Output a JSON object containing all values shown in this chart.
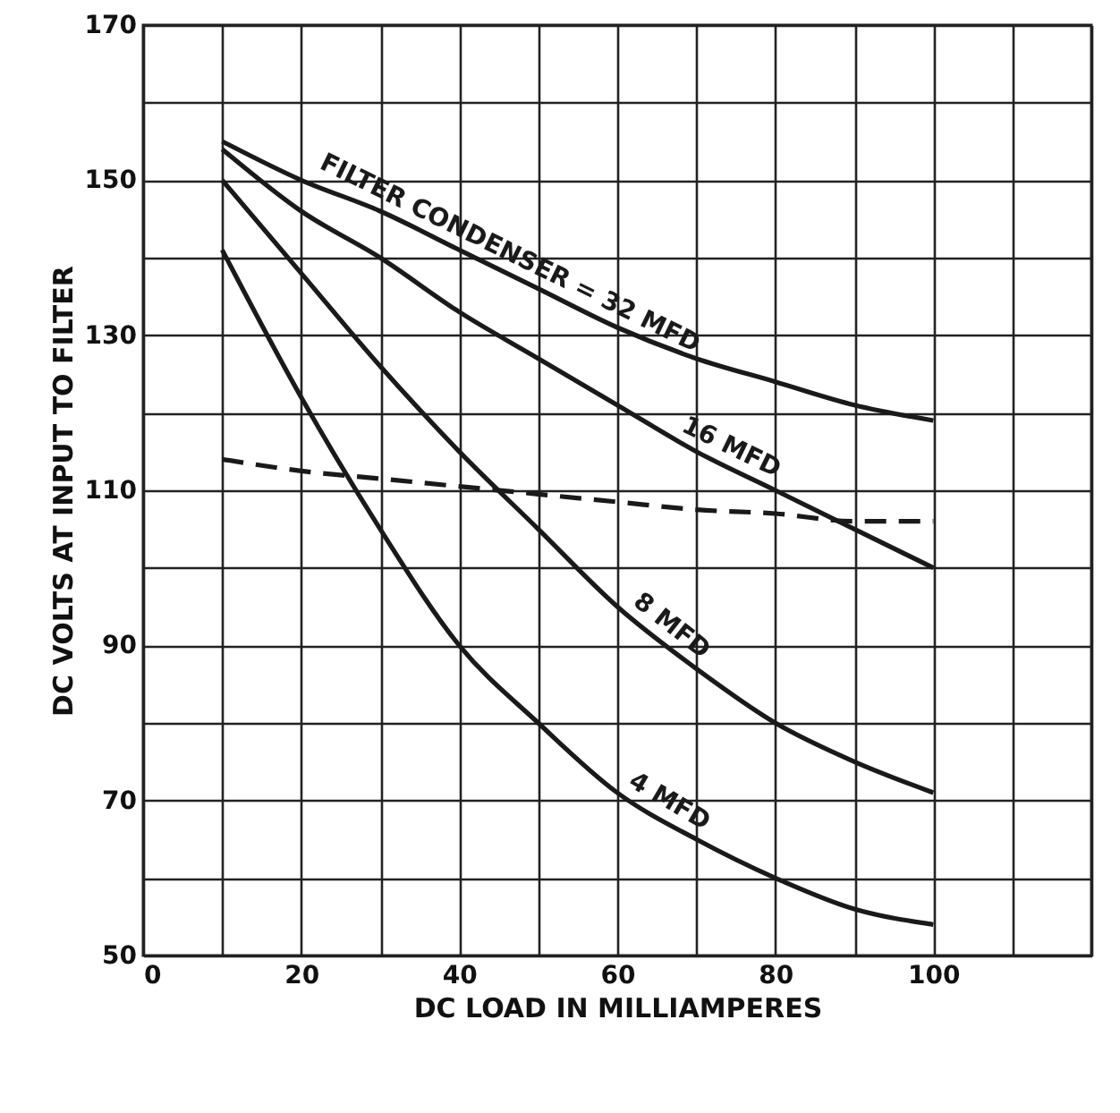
{
  "chart_data": {
    "type": "line",
    "x": [
      10,
      20,
      30,
      40,
      50,
      60,
      70,
      80,
      90,
      100
    ],
    "xlabel": "DC LOAD IN MILLIAMPERES",
    "ylabel": "DC VOLTS AT INPUT TO FILTER",
    "series": [
      {
        "name": "FILTER CONDENSER = 32 MFD",
        "color": "#1a1a1a",
        "values": [
          155,
          150,
          146,
          141,
          136,
          131,
          127,
          124,
          121,
          119
        ]
      },
      {
        "name": "16 MFD",
        "color": "#1a1a1a",
        "values": [
          154,
          146,
          140,
          133,
          127,
          121,
          115,
          110,
          105,
          100
        ]
      },
      {
        "name": "8 MFD",
        "color": "#1a1a1a",
        "values": [
          150,
          138,
          126,
          115,
          105,
          95,
          87,
          80,
          75,
          71
        ]
      },
      {
        "name": "4 MFD",
        "color": "#1a1a1a",
        "values": [
          141,
          122,
          105,
          90,
          80,
          71,
          65,
          60,
          56,
          54
        ]
      },
      {
        "color": "#1a1a1a",
        "line_style": "dashed",
        "values": [
          114,
          112.5,
          111.5,
          110.5,
          109.5,
          108.5,
          107.5,
          107,
          106,
          106
        ]
      }
    ],
    "xlim": [
      0,
      120
    ],
    "xticks": [
      0,
      {
        "value": 10,
        "label": null
      },
      20,
      {
        "value": 30,
        "label": null
      },
      40,
      {
        "value": 50,
        "label": null
      },
      60,
      {
        "value": 70,
        "label": null
      },
      80,
      {
        "value": 90,
        "label": null
      },
      100,
      {
        "value": 110,
        "label": null
      },
      {
        "value": 120,
        "label": null
      }
    ],
    "ylim": [
      50,
      170
    ],
    "yticks": [
      50,
      {
        "value": 60,
        "label": null
      },
      70,
      {
        "value": 80,
        "label": null
      },
      90,
      {
        "value": 100,
        "label": null
      },
      110,
      {
        "value": 120,
        "label": null
      },
      130,
      {
        "value": 140,
        "label": null
      },
      150,
      {
        "value": 160,
        "label": null
      },
      170
    ],
    "grid": true,
    "marker": "none",
    "line_style": "solid"
  }
}
